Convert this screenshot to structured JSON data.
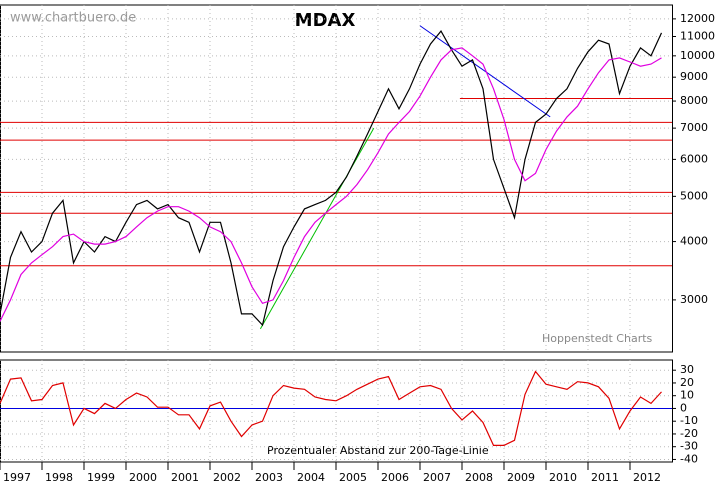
{
  "chart_data": [
    {
      "type": "line",
      "title": "MDAX",
      "source": "www.chartbuero.de",
      "credit": "Hoppenstedt Charts",
      "log_y": true,
      "grid": true,
      "xlim": [
        1997,
        2013
      ],
      "ylim": [
        2320,
        12850
      ],
      "yticks": [
        3000,
        4000,
        5000,
        6000,
        7000,
        8000,
        9000,
        10000,
        11000,
        12000
      ],
      "x": [
        1997.0,
        1997.25,
        1997.5,
        1997.75,
        1998.0,
        1998.25,
        1998.5,
        1998.75,
        1999.0,
        1999.25,
        1999.5,
        1999.75,
        2000.0,
        2000.25,
        2000.5,
        2000.75,
        2001.0,
        2001.25,
        2001.5,
        2001.75,
        2002.0,
        2002.25,
        2002.5,
        2002.75,
        2003.0,
        2003.25,
        2003.5,
        2003.75,
        2004.0,
        2004.25,
        2004.5,
        2004.75,
        2005.0,
        2005.25,
        2005.5,
        2005.75,
        2006.0,
        2006.25,
        2006.5,
        2006.75,
        2007.0,
        2007.25,
        2007.5,
        2007.75,
        2008.0,
        2008.25,
        2008.5,
        2008.75,
        2009.0,
        2009.25,
        2009.5,
        2009.75,
        2010.0,
        2010.25,
        2010.5,
        2010.75,
        2011.0,
        2011.25,
        2011.5,
        2011.75,
        2012.0,
        2012.25,
        2012.5,
        2012.75
      ],
      "series": [
        {
          "name": "MDAX",
          "color": "#000000",
          "values": [
            2800,
            3700,
            4200,
            3800,
            4000,
            4600,
            4900,
            3600,
            4000,
            3800,
            4100,
            4000,
            4400,
            4800,
            4900,
            4700,
            4800,
            4500,
            4400,
            3800,
            4400,
            4400,
            3600,
            2800,
            2800,
            2650,
            3300,
            3900,
            4300,
            4700,
            4800,
            4900,
            5100,
            5500,
            6100,
            6800,
            7600,
            8500,
            7700,
            8500,
            9600,
            10600,
            11300,
            10300,
            9500,
            9800,
            8500,
            6000,
            5200,
            4500,
            6000,
            7200,
            7500,
            8100,
            8500,
            9400,
            10200,
            10800,
            10600,
            8300,
            9500,
            10400,
            10000,
            11200
          ]
        },
        {
          "name": "200-Tage-Linie",
          "color": "#e000e0",
          "values": [
            2700,
            3000,
            3400,
            3600,
            3750,
            3900,
            4100,
            4150,
            4000,
            3950,
            3950,
            4000,
            4100,
            4300,
            4500,
            4650,
            4750,
            4750,
            4650,
            4500,
            4300,
            4200,
            4000,
            3600,
            3200,
            2950,
            3000,
            3300,
            3700,
            4100,
            4400,
            4600,
            4800,
            5000,
            5300,
            5700,
            6200,
            6800,
            7200,
            7600,
            8200,
            9000,
            9800,
            10300,
            10400,
            10000,
            9600,
            8500,
            7300,
            6000,
            5400,
            5600,
            6300,
            6900,
            7400,
            7800,
            8500,
            9200,
            9800,
            9900,
            9700,
            9500,
            9600,
            9900
          ]
        }
      ],
      "hlines": [
        {
          "value": 3550,
          "color": "#e00000"
        },
        {
          "value": 4600,
          "color": "#e00000"
        },
        {
          "value": 5100,
          "color": "#e00000"
        },
        {
          "value": 6600,
          "color": "#e00000"
        },
        {
          "value": 7200,
          "color": "#e00000"
        },
        {
          "value": 8100,
          "color": "#e00000",
          "from": 2007.95
        }
      ],
      "trendlines": [
        {
          "x": [
            2003.2,
            2005.9
          ],
          "y": [
            2600,
            7000
          ],
          "color": "#00c000"
        },
        {
          "x": [
            2007.0,
            2010.1
          ],
          "y": [
            11600,
            7400
          ],
          "color": "#0000e0"
        }
      ]
    },
    {
      "type": "line",
      "title": "Prozentualer Abstand zur 200-Tage-Linie",
      "grid": true,
      "xlim": [
        1997,
        2013
      ],
      "ylim": [
        -42,
        38
      ],
      "xticks": [
        1997,
        1998,
        1999,
        2000,
        2001,
        2002,
        2003,
        2004,
        2005,
        2006,
        2007,
        2008,
        2009,
        2010,
        2011,
        2012
      ],
      "yticks": [
        30,
        20,
        10,
        0,
        -10,
        -20,
        -30,
        -40
      ],
      "x": [
        1997.0,
        1997.25,
        1997.5,
        1997.75,
        1998.0,
        1998.25,
        1998.5,
        1998.75,
        1999.0,
        1999.25,
        1999.5,
        1999.75,
        2000.0,
        2000.25,
        2000.5,
        2000.75,
        2001.0,
        2001.25,
        2001.5,
        2001.75,
        2002.0,
        2002.25,
        2002.5,
        2002.75,
        2003.0,
        2003.25,
        2003.5,
        2003.75,
        2004.0,
        2004.25,
        2004.5,
        2004.75,
        2005.0,
        2005.25,
        2005.5,
        2005.75,
        2006.0,
        2006.25,
        2006.5,
        2006.75,
        2007.0,
        2007.25,
        2007.5,
        2007.75,
        2008.0,
        2008.25,
        2008.5,
        2008.75,
        2009.0,
        2009.25,
        2009.5,
        2009.75,
        2010.0,
        2010.25,
        2010.5,
        2010.75,
        2011.0,
        2011.25,
        2011.5,
        2011.75,
        2012.0,
        2012.25,
        2012.5,
        2012.75
      ],
      "series": [
        {
          "name": "Abstand",
          "color": "#e00000",
          "values": [
            4,
            23,
            24,
            6,
            7,
            18,
            20,
            -13,
            0,
            -4,
            4,
            0,
            7,
            12,
            9,
            1,
            1,
            -5,
            -5,
            -16,
            2,
            5,
            -10,
            -22,
            -13,
            -10,
            10,
            18,
            16,
            15,
            9,
            7,
            6,
            10,
            15,
            19,
            23,
            25,
            7,
            12,
            17,
            18,
            15,
            0,
            -9,
            -2,
            -11,
            -29,
            -29,
            -25,
            11,
            29,
            19,
            17,
            15,
            21,
            20,
            17,
            8,
            -16,
            -2,
            9,
            4,
            13
          ]
        }
      ],
      "hlines": [
        {
          "value": 0,
          "color": "#0000e0"
        }
      ]
    }
  ]
}
